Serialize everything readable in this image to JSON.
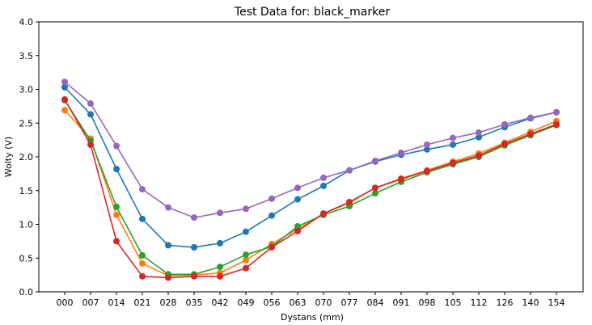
{
  "chart_data": {
    "type": "line",
    "title": "Test Data for: black_marker",
    "xlabel": "Dystans (mm)",
    "ylabel": "Wolty (V)",
    "ylim": [
      0.0,
      4.0
    ],
    "yticks": [
      "0.0",
      "0.5",
      "1.0",
      "1.5",
      "2.0",
      "2.5",
      "3.0",
      "3.5",
      "4.0"
    ],
    "grid": false,
    "categories": [
      "000",
      "007",
      "014",
      "021",
      "028",
      "035",
      "042",
      "049",
      "056",
      "063",
      "070",
      "077",
      "084",
      "091",
      "098",
      "105",
      "112",
      "126",
      "140",
      "154"
    ],
    "series": [
      {
        "color": "#1f77b4",
        "values": [
          3.03,
          2.63,
          1.82,
          1.08,
          0.69,
          0.66,
          0.72,
          0.89,
          1.13,
          1.37,
          1.57,
          1.8,
          1.93,
          2.03,
          2.11,
          2.18,
          2.29,
          2.44,
          2.57,
          2.66
        ]
      },
      {
        "color": "#ff7f0e",
        "values": [
          2.69,
          2.27,
          1.14,
          0.42,
          0.24,
          0.25,
          0.28,
          0.47,
          0.71,
          0.93,
          1.16,
          1.32,
          1.54,
          1.68,
          1.8,
          1.93,
          2.05,
          2.21,
          2.37,
          2.53
        ]
      },
      {
        "color": "#2ca02c",
        "values": [
          2.84,
          2.24,
          1.26,
          0.54,
          0.26,
          0.26,
          0.37,
          0.55,
          0.67,
          0.97,
          1.14,
          1.27,
          1.46,
          1.63,
          1.77,
          1.89,
          2.0,
          2.17,
          2.32,
          2.47
        ]
      },
      {
        "color": "#d62728",
        "values": [
          2.85,
          2.18,
          0.75,
          0.23,
          0.21,
          0.23,
          0.23,
          0.35,
          0.66,
          0.9,
          1.16,
          1.33,
          1.54,
          1.67,
          1.79,
          1.91,
          2.02,
          2.19,
          2.34,
          2.48
        ]
      },
      {
        "color": "#9467bd",
        "values": [
          3.11,
          2.79,
          2.16,
          1.52,
          1.25,
          1.1,
          1.17,
          1.23,
          1.38,
          1.54,
          1.69,
          1.8,
          1.94,
          2.06,
          2.18,
          2.28,
          2.36,
          2.48,
          2.58,
          2.66
        ]
      }
    ]
  }
}
